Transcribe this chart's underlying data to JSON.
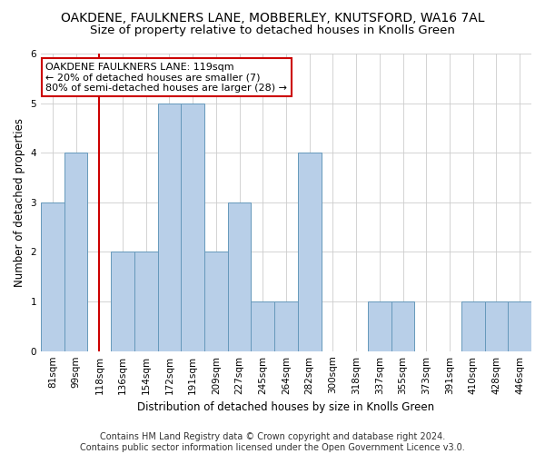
{
  "title": "OAKDENE, FAULKNERS LANE, MOBBERLEY, KNUTSFORD, WA16 7AL",
  "subtitle": "Size of property relative to detached houses in Knolls Green",
  "xlabel": "Distribution of detached houses by size in Knolls Green",
  "ylabel": "Number of detached properties",
  "footer_line1": "Contains HM Land Registry data © Crown copyright and database right 2024.",
  "footer_line2": "Contains public sector information licensed under the Open Government Licence v3.0.",
  "categories": [
    "81sqm",
    "99sqm",
    "118sqm",
    "136sqm",
    "154sqm",
    "172sqm",
    "191sqm",
    "209sqm",
    "227sqm",
    "245sqm",
    "264sqm",
    "282sqm",
    "300sqm",
    "318sqm",
    "337sqm",
    "355sqm",
    "373sqm",
    "391sqm",
    "410sqm",
    "428sqm",
    "446sqm"
  ],
  "values": [
    3,
    4,
    0,
    2,
    2,
    5,
    5,
    2,
    3,
    1,
    1,
    4,
    0,
    0,
    1,
    1,
    0,
    0,
    1,
    1,
    1
  ],
  "bar_color": "#b8cfe8",
  "bar_edge_color": "#6699bb",
  "highlight_index": 2,
  "highlight_color": "#cc0000",
  "annotation_text": "OAKDENE FAULKNERS LANE: 119sqm\n← 20% of detached houses are smaller (7)\n80% of semi-detached houses are larger (28) →",
  "annotation_box_color": "#ffffff",
  "annotation_box_edge": "#cc0000",
  "ylim": [
    0,
    6
  ],
  "yticks": [
    0,
    1,
    2,
    3,
    4,
    5,
    6
  ],
  "background_color": "#ffffff",
  "grid_color": "#cccccc",
  "title_fontsize": 10,
  "subtitle_fontsize": 9.5,
  "axis_label_fontsize": 8.5,
  "tick_fontsize": 7.5,
  "annotation_fontsize": 8,
  "footer_fontsize": 7
}
